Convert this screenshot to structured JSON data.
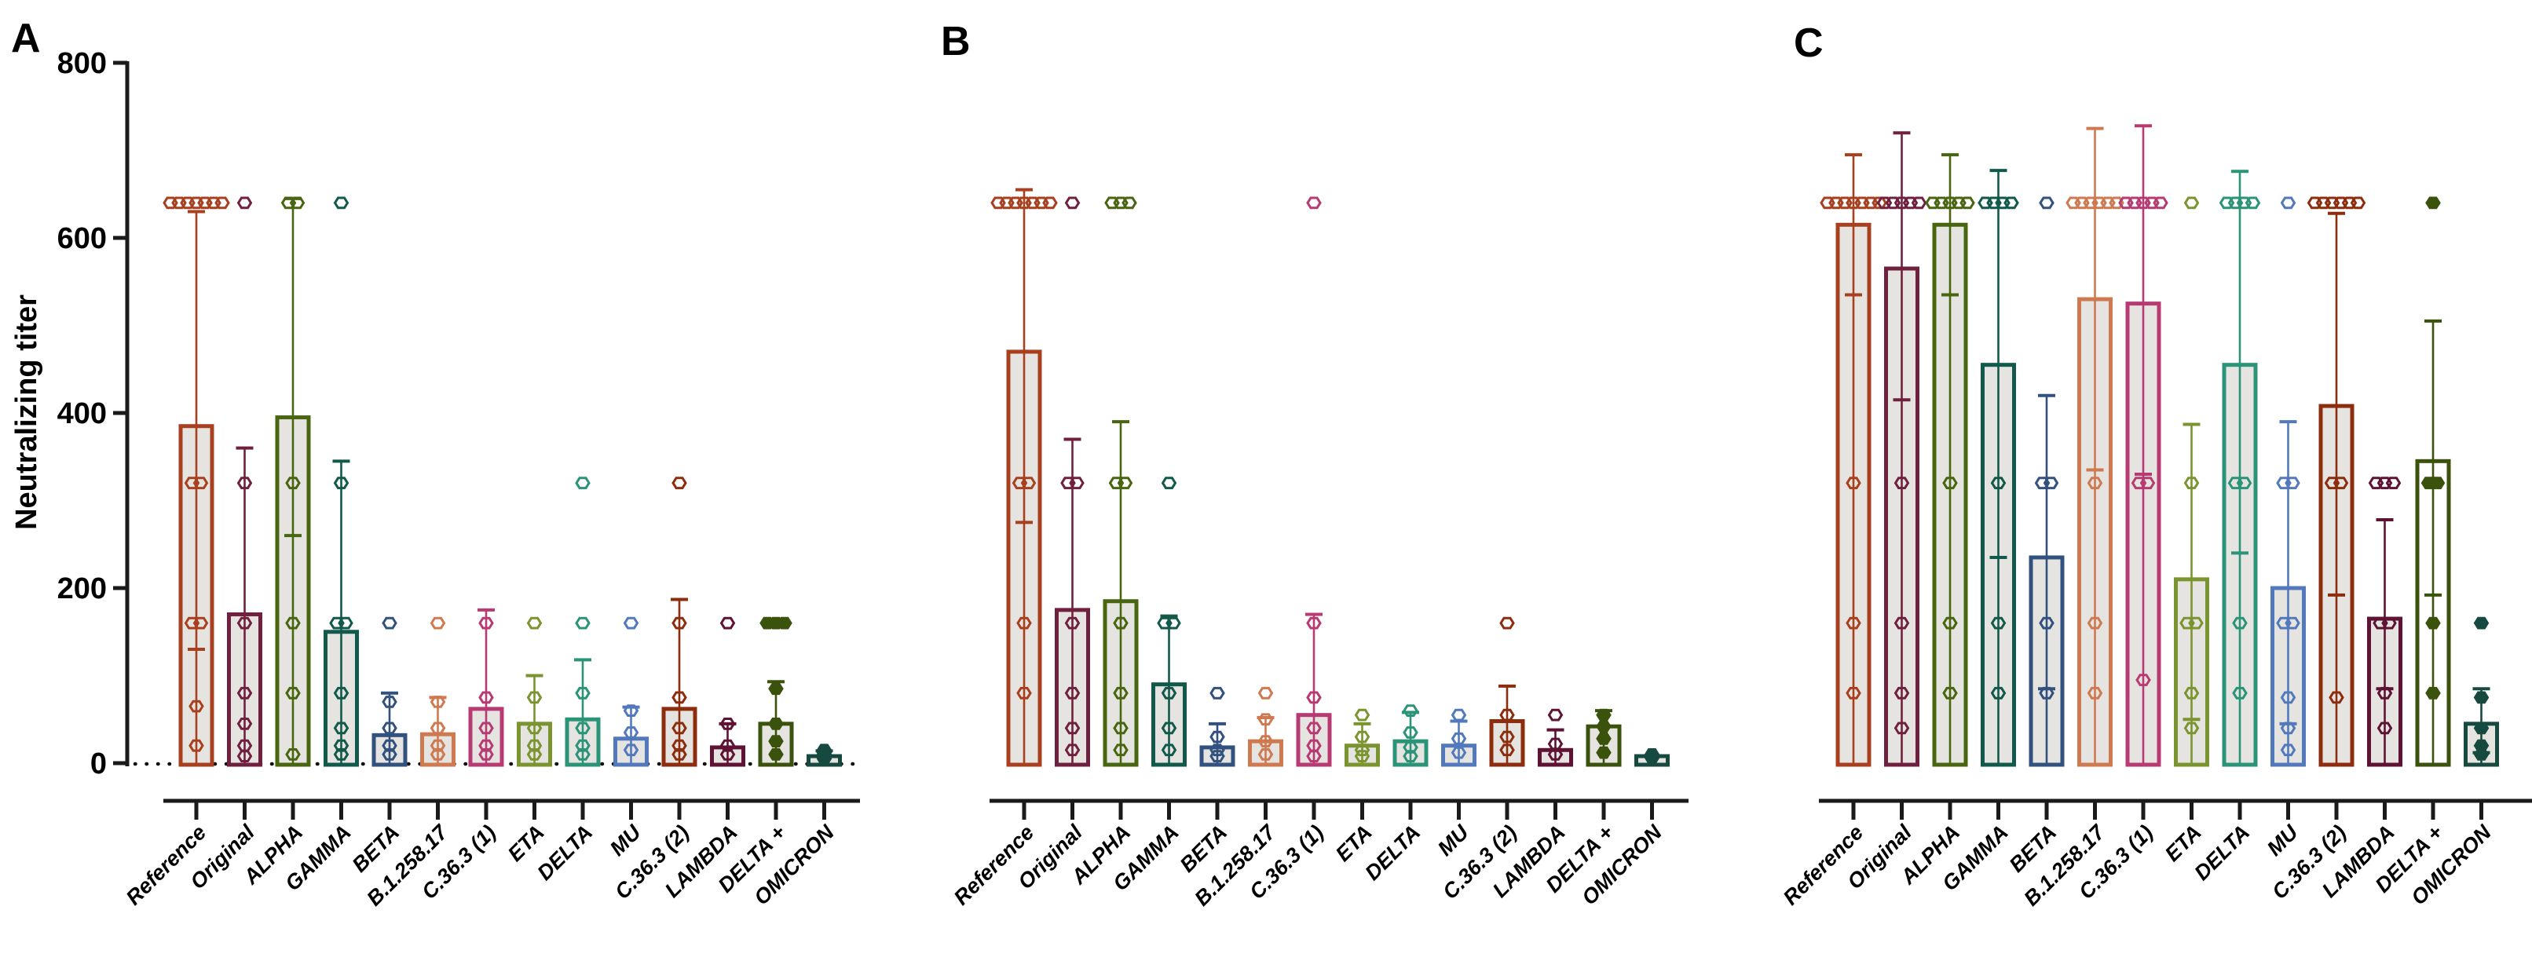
{
  "chart_data": {
    "type": "bar",
    "title": "",
    "ylabel": "Neutralizing titer",
    "xlabel": "",
    "ylim": [
      0,
      800
    ],
    "yticks": [
      0,
      200,
      400,
      600,
      800
    ],
    "grid": false,
    "legend": "none",
    "panel_labels": [
      "A",
      "B",
      "C"
    ],
    "categories": [
      "Reference",
      "Original",
      "ALPHA",
      "GAMMA",
      "BETA",
      "B.1.258.17",
      "C.36.3 (1)",
      "ETA",
      "DELTA",
      "MU",
      "C.36.3 (2)",
      "LAMBDA",
      "DELTA +",
      "OMICRON"
    ],
    "colors": [
      "#A8401F",
      "#70203F",
      "#48650F",
      "#11594A",
      "#33517E",
      "#CE7950",
      "#B73B72",
      "#7A942F",
      "#2B9377",
      "#5179BC",
      "#8C2D0D",
      "#5E1234",
      "#3A520B",
      "#164A40"
    ],
    "bar_fill": "#E6E4E1",
    "axis_color": "#1a1a1a",
    "panels": [
      {
        "label": "A",
        "series": [
          {
            "c": "Reference",
            "v": 385,
            "lo": 130,
            "hi": 630,
            "pts": [
              640,
              640,
              640,
              640,
              640,
              640,
              640,
              320,
              320,
              160,
              160,
              65,
              20
            ]
          },
          {
            "c": "Original",
            "v": 170,
            "lo": null,
            "hi": 360,
            "pts": [
              640,
              320,
              160,
              80,
              45,
              20,
              8
            ]
          },
          {
            "c": "ALPHA",
            "v": 395,
            "lo": 260,
            "hi": 645,
            "pts": [
              640,
              640,
              320,
              160,
              80,
              10
            ]
          },
          {
            "c": "GAMMA",
            "v": 150,
            "lo": null,
            "hi": 345,
            "pts": [
              640,
              320,
              160,
              160,
              80,
              40,
              20,
              10
            ]
          },
          {
            "c": "BETA",
            "v": 32,
            "lo": null,
            "hi": 80,
            "pts": [
              160,
              70,
              40,
              20,
              10
            ]
          },
          {
            "c": "B.1.258.17",
            "v": 33,
            "lo": null,
            "hi": 75,
            "pts": [
              160,
              70,
              40,
              20,
              10
            ]
          },
          {
            "c": "C.36.3 (1)",
            "v": 62,
            "lo": null,
            "hi": 175,
            "pts": [
              160,
              75,
              40,
              20,
              10
            ]
          },
          {
            "c": "ETA",
            "v": 45,
            "lo": null,
            "hi": 100,
            "pts": [
              160,
              75,
              40,
              20,
              10
            ]
          },
          {
            "c": "DELTA",
            "v": 50,
            "lo": null,
            "hi": 118,
            "pts": [
              320,
              160,
              80,
              40,
              20,
              10
            ]
          },
          {
            "c": "MU",
            "v": 28,
            "lo": null,
            "hi": 64,
            "pts": [
              160,
              60,
              35,
              15
            ]
          },
          {
            "c": "C.36.3 (2)",
            "v": 62,
            "lo": null,
            "hi": 187,
            "pts": [
              320,
              160,
              75,
              40,
              20,
              10
            ]
          },
          {
            "c": "LAMBDA",
            "v": 18,
            "lo": null,
            "hi": 45,
            "pts": [
              160,
              45,
              20,
              10
            ]
          },
          {
            "c": "DELTA +",
            "v": 45,
            "lo": null,
            "hi": 93,
            "filled": true,
            "pts": [
              160,
              160,
              160,
              85,
              45,
              25,
              10
            ]
          },
          {
            "c": "OMICRON",
            "v": 8,
            "lo": null,
            "hi": 14,
            "filled": true,
            "pts": [
              15,
              12,
              10,
              8,
              5
            ]
          }
        ]
      },
      {
        "label": "B",
        "series": [
          {
            "c": "Reference",
            "v": 470,
            "lo": 275,
            "hi": 655,
            "pts": [
              640,
              640,
              640,
              640,
              640,
              640,
              640,
              320,
              320,
              160,
              80
            ]
          },
          {
            "c": "Original",
            "v": 175,
            "lo": null,
            "hi": 370,
            "pts": [
              640,
              320,
              320,
              160,
              80,
              40,
              15
            ]
          },
          {
            "c": "ALPHA",
            "v": 185,
            "lo": null,
            "hi": 390,
            "pts": [
              640,
              640,
              640,
              320,
              320,
              160,
              80,
              40,
              15
            ]
          },
          {
            "c": "GAMMA",
            "v": 90,
            "lo": null,
            "hi": 168,
            "pts": [
              320,
              160,
              160,
              80,
              40,
              15
            ]
          },
          {
            "c": "BETA",
            "v": 18,
            "lo": null,
            "hi": 45,
            "pts": [
              80,
              30,
              15,
              8
            ]
          },
          {
            "c": "B.1.258.17",
            "v": 25,
            "lo": null,
            "hi": 52,
            "pts": [
              80,
              50,
              25,
              10
            ]
          },
          {
            "c": "C.36.3 (1)",
            "v": 55,
            "lo": null,
            "hi": 170,
            "pts": [
              640,
              160,
              75,
              40,
              20,
              8
            ]
          },
          {
            "c": "ETA",
            "v": 20,
            "lo": null,
            "hi": 45,
            "pts": [
              55,
              30,
              15,
              8
            ]
          },
          {
            "c": "DELTA",
            "v": 25,
            "lo": null,
            "hi": 58,
            "pts": [
              60,
              35,
              18,
              8
            ]
          },
          {
            "c": "MU",
            "v": 20,
            "lo": null,
            "hi": 48,
            "pts": [
              55,
              28,
              12
            ]
          },
          {
            "c": "C.36.3 (2)",
            "v": 48,
            "lo": null,
            "hi": 88,
            "pts": [
              160,
              55,
              30,
              15
            ]
          },
          {
            "c": "LAMBDA",
            "v": 15,
            "lo": null,
            "hi": 38,
            "pts": [
              55,
              22,
              10
            ]
          },
          {
            "c": "DELTA +",
            "v": 42,
            "lo": null,
            "hi": 60,
            "filled": true,
            "pts": [
              55,
              42,
              28,
              12
            ]
          },
          {
            "c": "OMICRON",
            "v": 8,
            "lo": null,
            "hi": null,
            "filled": true,
            "pts": [
              10,
              8,
              6
            ]
          }
        ]
      },
      {
        "label": "C",
        "series": [
          {
            "c": "Reference",
            "v": 615,
            "lo": 535,
            "hi": 695,
            "pts": [
              640,
              640,
              640,
              640,
              640,
              640,
              640,
              320,
              160,
              80
            ]
          },
          {
            "c": "Original",
            "v": 565,
            "lo": 415,
            "hi": 720,
            "pts": [
              640,
              640,
              640,
              640,
              640,
              320,
              160,
              80,
              40
            ]
          },
          {
            "c": "ALPHA",
            "v": 615,
            "lo": 535,
            "hi": 695,
            "pts": [
              640,
              640,
              640,
              640,
              640,
              320,
              160,
              80
            ]
          },
          {
            "c": "GAMMA",
            "v": 455,
            "lo": 235,
            "hi": 677,
            "pts": [
              640,
              640,
              640,
              640,
              320,
              160,
              80
            ]
          },
          {
            "c": "BETA",
            "v": 235,
            "lo": 85,
            "hi": 420,
            "pts": [
              640,
              320,
              320,
              160,
              80
            ]
          },
          {
            "c": "B.1.258.17",
            "v": 530,
            "lo": 335,
            "hi": 725,
            "pts": [
              640,
              640,
              640,
              640,
              640,
              640,
              320,
              160,
              80
            ]
          },
          {
            "c": "C.36.3 (1)",
            "v": 525,
            "lo": 330,
            "hi": 728,
            "pts": [
              640,
              640,
              640,
              640,
              640,
              320,
              320,
              95
            ]
          },
          {
            "c": "ETA",
            "v": 210,
            "lo": 50,
            "hi": 387,
            "pts": [
              640,
              320,
              160,
              160,
              80,
              40
            ]
          },
          {
            "c": "DELTA",
            "v": 455,
            "lo": 240,
            "hi": 676,
            "pts": [
              640,
              640,
              640,
              640,
              320,
              320,
              160,
              80
            ]
          },
          {
            "c": "MU",
            "v": 200,
            "lo": 45,
            "hi": 390,
            "pts": [
              640,
              320,
              320,
              160,
              160,
              75,
              40,
              15
            ]
          },
          {
            "c": "C.36.3 (2)",
            "v": 408,
            "lo": 192,
            "hi": 628,
            "pts": [
              640,
              640,
              640,
              640,
              640,
              640,
              320,
              320,
              75
            ]
          },
          {
            "c": "LAMBDA",
            "v": 165,
            "lo": 85,
            "hi": 278,
            "pts": [
              320,
              320,
              320,
              160,
              160,
              80,
              40
            ]
          },
          {
            "c": "DELTA +",
            "v": 345,
            "lo": 192,
            "hi": 505,
            "filled": true,
            "fill": "#FFFFFF",
            "pts": [
              640,
              320,
              320,
              160,
              80
            ]
          },
          {
            "c": "OMICRON",
            "v": 45,
            "lo": 12,
            "hi": 85,
            "filled": true,
            "pts": [
              160,
              75,
              40,
              20,
              10
            ]
          }
        ]
      }
    ]
  }
}
